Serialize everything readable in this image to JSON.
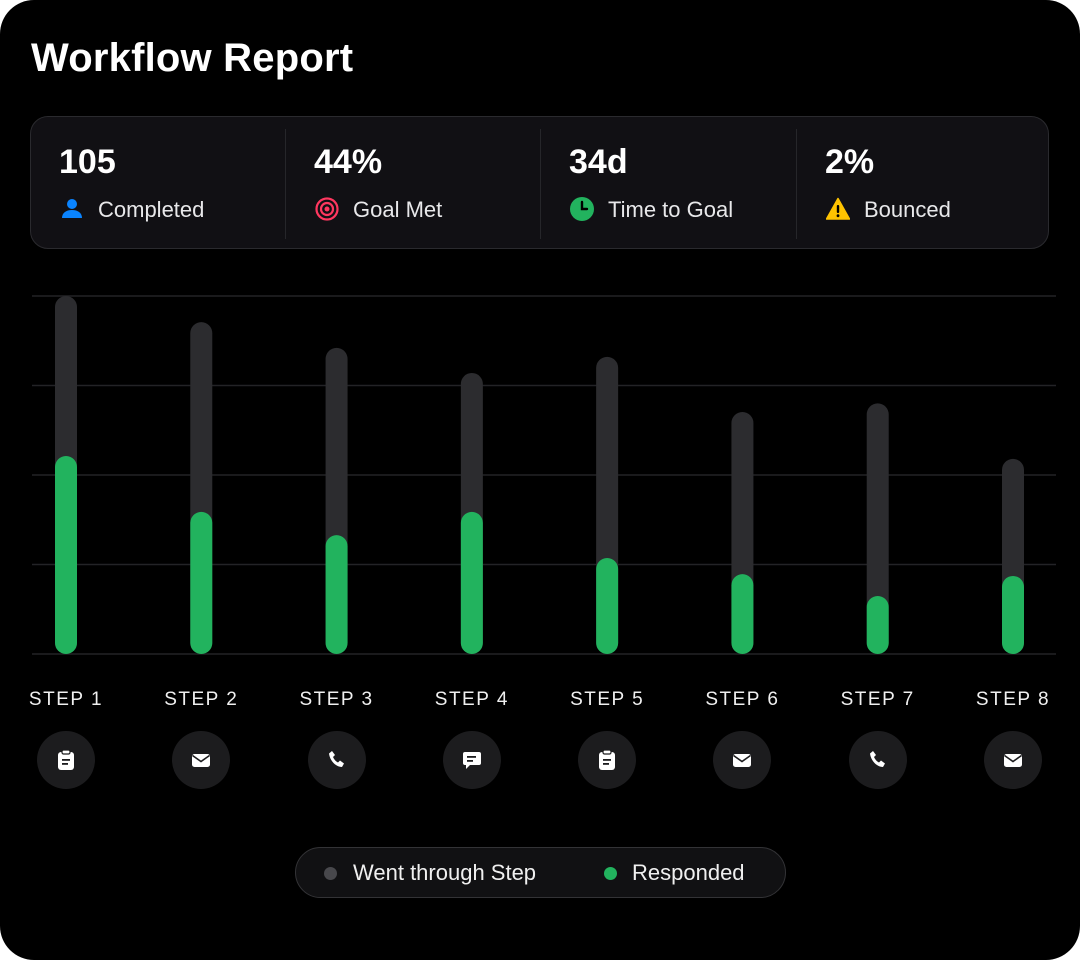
{
  "title": "Workflow Report",
  "stats": [
    {
      "value": "105",
      "label": "Completed",
      "icon": "person-icon",
      "color": "#0a84ff"
    },
    {
      "value": "44%",
      "label": "Goal Met",
      "icon": "target-icon",
      "color": "#ff375f"
    },
    {
      "value": "34d",
      "label": "Time to Goal",
      "icon": "clock-icon",
      "color": "#22b35e"
    },
    {
      "value": "2%",
      "label": "Bounced",
      "icon": "warning-icon",
      "color": "#ffc300"
    }
  ],
  "chart_data": {
    "type": "bar",
    "categories": [
      "STEP 1",
      "STEP 2",
      "STEP 3",
      "STEP 4",
      "STEP 5",
      "STEP 6",
      "STEP 7",
      "STEP 8"
    ],
    "step_icons": [
      "clipboard-icon",
      "mail-icon",
      "phone-icon",
      "chat-icon",
      "clipboard-icon",
      "mail-icon",
      "phone-icon",
      "mail-icon"
    ],
    "series": [
      {
        "name": "Went through Step",
        "color": "#2c2c2f",
        "values": [
          100,
          92.7,
          85.5,
          78.5,
          83,
          67.6,
          70,
          54.5
        ]
      },
      {
        "name": "Responded",
        "color": "#22b35e",
        "values": [
          55.3,
          39.7,
          33.2,
          39.7,
          26.8,
          22.3,
          16.2,
          21.8
        ]
      }
    ],
    "ylim": [
      0,
      100
    ],
    "grid": true,
    "legend_position": "bottom-center"
  }
}
